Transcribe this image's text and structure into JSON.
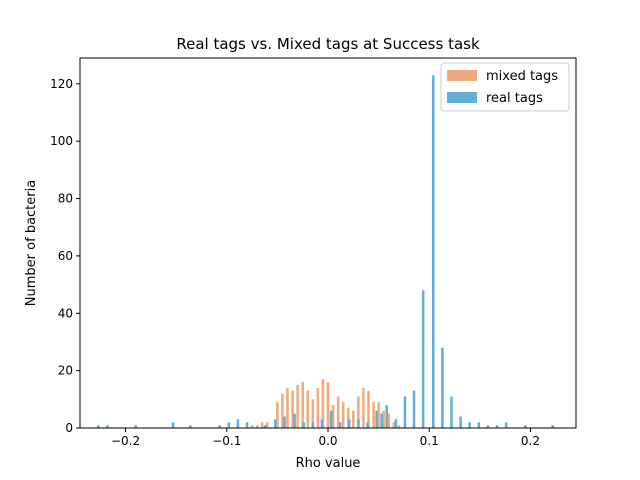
{
  "chart_data": {
    "type": "bar",
    "title": "Real tags vs. Mixed tags at Success task",
    "xlabel": "Rho value",
    "ylabel": "Number of bacteria",
    "xlim": [
      -0.245,
      0.245
    ],
    "ylim": [
      0,
      129
    ],
    "xticks": [
      -0.2,
      -0.1,
      0.0,
      0.1,
      0.2
    ],
    "xtick_labels": [
      "−0.2",
      "−0.1",
      "0.0",
      "0.1",
      "0.2"
    ],
    "yticks": [
      0,
      20,
      40,
      60,
      80,
      100,
      120
    ],
    "ytick_labels": [
      "0",
      "20",
      "40",
      "60",
      "80",
      "100",
      "120"
    ],
    "grid": false,
    "legend_position": "top-right",
    "series": [
      {
        "name": "mixed tags",
        "color": "#f0aa7e",
        "bin_width": 0.0025,
        "points": [
          {
            "x": -0.075,
            "y": 1
          },
          {
            "x": -0.07,
            "y": 1
          },
          {
            "x": -0.065,
            "y": 2
          },
          {
            "x": -0.06,
            "y": 2
          },
          {
            "x": -0.05,
            "y": 9
          },
          {
            "x": -0.045,
            "y": 12
          },
          {
            "x": -0.04,
            "y": 14
          },
          {
            "x": -0.035,
            "y": 13
          },
          {
            "x": -0.03,
            "y": 15
          },
          {
            "x": -0.025,
            "y": 16
          },
          {
            "x": -0.02,
            "y": 13
          },
          {
            "x": -0.015,
            "y": 10
          },
          {
            "x": -0.01,
            "y": 14
          },
          {
            "x": -0.005,
            "y": 17
          },
          {
            "x": 0.0,
            "y": 16
          },
          {
            "x": 0.005,
            "y": 8
          },
          {
            "x": 0.01,
            "y": 11
          },
          {
            "x": 0.015,
            "y": 9
          },
          {
            "x": 0.02,
            "y": 7
          },
          {
            "x": 0.025,
            "y": 6
          },
          {
            "x": 0.03,
            "y": 11
          },
          {
            "x": 0.035,
            "y": 14
          },
          {
            "x": 0.04,
            "y": 13
          },
          {
            "x": 0.045,
            "y": 9
          },
          {
            "x": 0.05,
            "y": 9
          },
          {
            "x": 0.055,
            "y": 6
          },
          {
            "x": 0.06,
            "y": 5
          },
          {
            "x": 0.065,
            "y": 2
          },
          {
            "x": 0.07,
            "y": 1
          }
        ]
      },
      {
        "name": "real tags",
        "color": "#62b0d6",
        "bin_width": 0.0025,
        "points": [
          {
            "x": -0.227,
            "y": 1
          },
          {
            "x": -0.218,
            "y": 1
          },
          {
            "x": -0.19,
            "y": 1
          },
          {
            "x": -0.153,
            "y": 2
          },
          {
            "x": -0.136,
            "y": 1
          },
          {
            "x": -0.107,
            "y": 1
          },
          {
            "x": -0.098,
            "y": 2
          },
          {
            "x": -0.089,
            "y": 3
          },
          {
            "x": -0.08,
            "y": 2
          },
          {
            "x": -0.062,
            "y": 1
          },
          {
            "x": -0.052,
            "y": 3
          },
          {
            "x": -0.043,
            "y": 4
          },
          {
            "x": -0.033,
            "y": 5
          },
          {
            "x": -0.024,
            "y": 2
          },
          {
            "x": -0.015,
            "y": 2
          },
          {
            "x": -0.006,
            "y": 3
          },
          {
            "x": 0.003,
            "y": 6
          },
          {
            "x": 0.012,
            "y": 2
          },
          {
            "x": 0.021,
            "y": 3
          },
          {
            "x": 0.03,
            "y": 3
          },
          {
            "x": 0.039,
            "y": 2
          },
          {
            "x": 0.048,
            "y": 6
          },
          {
            "x": 0.053,
            "y": 5
          },
          {
            "x": 0.058,
            "y": 8
          },
          {
            "x": 0.067,
            "y": 3
          },
          {
            "x": 0.076,
            "y": 11
          },
          {
            "x": 0.085,
            "y": 13
          },
          {
            "x": 0.094,
            "y": 48
          },
          {
            "x": 0.104,
            "y": 123
          },
          {
            "x": 0.113,
            "y": 28
          },
          {
            "x": 0.122,
            "y": 11
          },
          {
            "x": 0.131,
            "y": 4
          },
          {
            "x": 0.14,
            "y": 2
          },
          {
            "x": 0.149,
            "y": 2
          },
          {
            "x": 0.158,
            "y": 1
          },
          {
            "x": 0.167,
            "y": 1
          },
          {
            "x": 0.176,
            "y": 2
          },
          {
            "x": 0.195,
            "y": 1
          },
          {
            "x": 0.222,
            "y": 1
          }
        ]
      }
    ]
  }
}
